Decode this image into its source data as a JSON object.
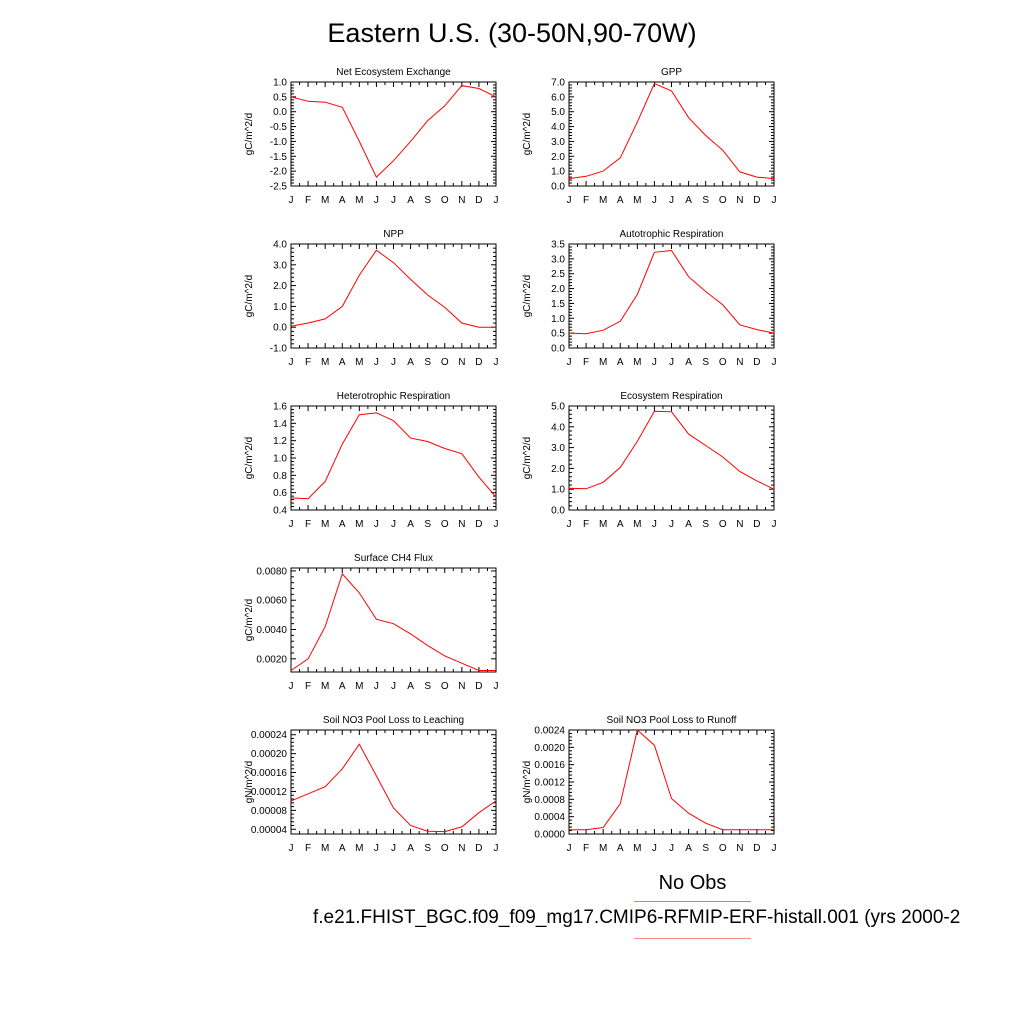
{
  "title": "Eastern U.S. (30-50N,90-70W)",
  "legend": {
    "obs_label": "No Obs",
    "case_label": "f.e21.FHIST_BGC.f09_f09_mg17.CMIP6-RFMIP-ERF-histall.001 (yrs 2000-2",
    "obs_color": "#8c8cf0",
    "model_color": "#f08c8c"
  },
  "chart_data": [
    {
      "type": "line",
      "title": "Net Ecosystem Exchange",
      "ylabel": "gC/m^2/d",
      "categories": [
        "J",
        "F",
        "M",
        "A",
        "M",
        "J",
        "J",
        "A",
        "S",
        "O",
        "N",
        "D",
        "J"
      ],
      "values": [
        0.5,
        0.35,
        0.32,
        0.15,
        -1.0,
        -2.2,
        -1.65,
        -1.0,
        -0.3,
        0.2,
        0.88,
        0.78,
        0.5
      ],
      "ylim": [
        -2.5,
        1.0
      ],
      "yticks": [
        1.0,
        0.5,
        0.0,
        -0.5,
        -1.0,
        -1.5,
        -2.0,
        -2.5
      ],
      "ytick_labels": [
        "1.0",
        "0.5",
        "0.0",
        "-0.5",
        "-1.0",
        "-1.5",
        "-2.0",
        "-2.5"
      ],
      "line_color": "#ff0000"
    },
    {
      "type": "line",
      "title": "GPP",
      "ylabel": "gC/m^2/d",
      "categories": [
        "J",
        "F",
        "M",
        "A",
        "M",
        "J",
        "J",
        "A",
        "S",
        "O",
        "N",
        "D",
        "J"
      ],
      "values": [
        0.5,
        0.65,
        1.0,
        1.9,
        4.3,
        6.9,
        6.4,
        4.6,
        3.4,
        2.4,
        0.95,
        0.6,
        0.5
      ],
      "ylim": [
        0.0,
        7.0
      ],
      "yticks": [
        7.0,
        6.0,
        5.0,
        4.0,
        3.0,
        2.0,
        1.0,
        0.0
      ],
      "ytick_labels": [
        "7.0",
        "6.0",
        "5.0",
        "4.0",
        "3.0",
        "2.0",
        "1.0",
        "0.0"
      ],
      "line_color": "#ff0000"
    },
    {
      "type": "line",
      "title": "NPP",
      "ylabel": "gC/m^2/d",
      "categories": [
        "J",
        "F",
        "M",
        "A",
        "M",
        "J",
        "J",
        "A",
        "S",
        "O",
        "N",
        "D",
        "J"
      ],
      "values": [
        0.05,
        0.2,
        0.4,
        1.0,
        2.5,
        3.7,
        3.1,
        2.3,
        1.55,
        0.95,
        0.2,
        0.0,
        0.0
      ],
      "ylim": [
        -1.0,
        4.0
      ],
      "yticks": [
        4.0,
        3.0,
        2.0,
        1.0,
        0.0,
        -1.0
      ],
      "ytick_labels": [
        "4.0",
        "3.0",
        "2.0",
        "1.0",
        "0.0",
        "-1.0"
      ],
      "line_color": "#ff0000"
    },
    {
      "type": "line",
      "title": "Autotrophic Respiration",
      "ylabel": "gC/m^2/d",
      "categories": [
        "J",
        "F",
        "M",
        "A",
        "M",
        "J",
        "J",
        "A",
        "S",
        "O",
        "N",
        "D",
        "J"
      ],
      "values": [
        0.5,
        0.48,
        0.6,
        0.9,
        1.8,
        3.22,
        3.28,
        2.4,
        1.9,
        1.45,
        0.78,
        0.62,
        0.5
      ],
      "ylim": [
        0.0,
        3.5
      ],
      "yticks": [
        3.5,
        3.0,
        2.5,
        2.0,
        1.5,
        1.0,
        0.5,
        0.0
      ],
      "ytick_labels": [
        "3.5",
        "3.0",
        "2.5",
        "2.0",
        "1.5",
        "1.0",
        "0.5",
        "0.0"
      ],
      "line_color": "#ff0000"
    },
    {
      "type": "line",
      "title": "Heterotrophic Respiration",
      "ylabel": "gC/m^2/d",
      "categories": [
        "J",
        "F",
        "M",
        "A",
        "M",
        "J",
        "J",
        "A",
        "S",
        "O",
        "N",
        "D",
        "J"
      ],
      "values": [
        0.54,
        0.53,
        0.73,
        1.16,
        1.5,
        1.52,
        1.43,
        1.23,
        1.19,
        1.11,
        1.05,
        0.78,
        0.55
      ],
      "ylim": [
        0.4,
        1.6
      ],
      "yticks": [
        1.6,
        1.4,
        1.2,
        1.0,
        0.8,
        0.6,
        0.4
      ],
      "ytick_labels": [
        "1.6",
        "1.4",
        "1.2",
        "1.0",
        "0.8",
        "0.6",
        "0.4"
      ],
      "line_color": "#ff0000"
    },
    {
      "type": "line",
      "title": "Ecosystem Respiration",
      "ylabel": "gC/m^2/d",
      "categories": [
        "J",
        "F",
        "M",
        "A",
        "M",
        "J",
        "J",
        "A",
        "S",
        "O",
        "N",
        "D",
        "J"
      ],
      "values": [
        1.05,
        1.02,
        1.33,
        2.05,
        3.3,
        4.75,
        4.72,
        3.65,
        3.1,
        2.55,
        1.85,
        1.4,
        1.0
      ],
      "ylim": [
        0.0,
        5.0
      ],
      "yticks": [
        5.0,
        4.0,
        3.0,
        2.0,
        1.0,
        0.0
      ],
      "ytick_labels": [
        "5.0",
        "4.0",
        "3.0",
        "2.0",
        "1.0",
        "0.0"
      ],
      "line_color": "#ff0000"
    },
    {
      "type": "line",
      "title": "Surface CH4 Flux",
      "ylabel": "gC/m^2/d",
      "categories": [
        "J",
        "F",
        "M",
        "A",
        "M",
        "J",
        "J",
        "A",
        "S",
        "O",
        "N",
        "D",
        "J"
      ],
      "values": [
        0.0012,
        0.002,
        0.0042,
        0.0078,
        0.0065,
        0.0047,
        0.0044,
        0.0037,
        0.0029,
        0.0022,
        0.0017,
        0.0012,
        0.0012
      ],
      "ylim": [
        0.0011,
        0.0082
      ],
      "yticks": [
        0.008,
        0.006,
        0.004,
        0.002
      ],
      "ytick_labels": [
        "0.0080",
        "0.0060",
        "0.0040",
        "0.0020"
      ],
      "line_color": "#ff0000"
    },
    {
      "type": "line",
      "title": "Soil NO3 Pool Loss to Leaching",
      "ylabel": "gN/m^2/d",
      "categories": [
        "J",
        "F",
        "M",
        "A",
        "M",
        "J",
        "J",
        "A",
        "S",
        "O",
        "N",
        "D",
        "J"
      ],
      "values": [
        0.0001,
        0.000115,
        0.00013,
        0.000168,
        0.00022,
        0.000153,
        8.5e-05,
        4.8e-05,
        3.6e-05,
        3.5e-05,
        4.5e-05,
        7.5e-05,
        0.0001
      ],
      "ylim": [
        3e-05,
        0.00025
      ],
      "yticks": [
        0.00024,
        0.0002,
        0.00016,
        0.00012,
        8e-05,
        4e-05
      ],
      "ytick_labels": [
        "0.00024",
        "0.00020",
        "0.00016",
        "0.00012",
        "0.00008",
        "0.00004"
      ],
      "line_color": "#ff0000"
    },
    {
      "type": "line",
      "title": "Soil NO3 Pool Loss to Runoff",
      "ylabel": "gN/m^2/d",
      "categories": [
        "J",
        "F",
        "M",
        "A",
        "M",
        "J",
        "J",
        "A",
        "S",
        "O",
        "N",
        "D",
        "J"
      ],
      "values": [
        0.0001,
        0.0001,
        0.00015,
        0.0007,
        0.0024,
        0.00205,
        0.00082,
        0.00048,
        0.00025,
        0.0001,
        0.0001,
        0.0001,
        0.0001
      ],
      "ylim": [
        0.0,
        0.0024
      ],
      "yticks": [
        0.0024,
        0.002,
        0.0016,
        0.0012,
        0.0008,
        0.0004,
        0.0
      ],
      "ytick_labels": [
        "0.0024",
        "0.0020",
        "0.0016",
        "0.0012",
        "0.0008",
        "0.0004",
        "0.0000"
      ],
      "line_color": "#ff0000"
    }
  ]
}
